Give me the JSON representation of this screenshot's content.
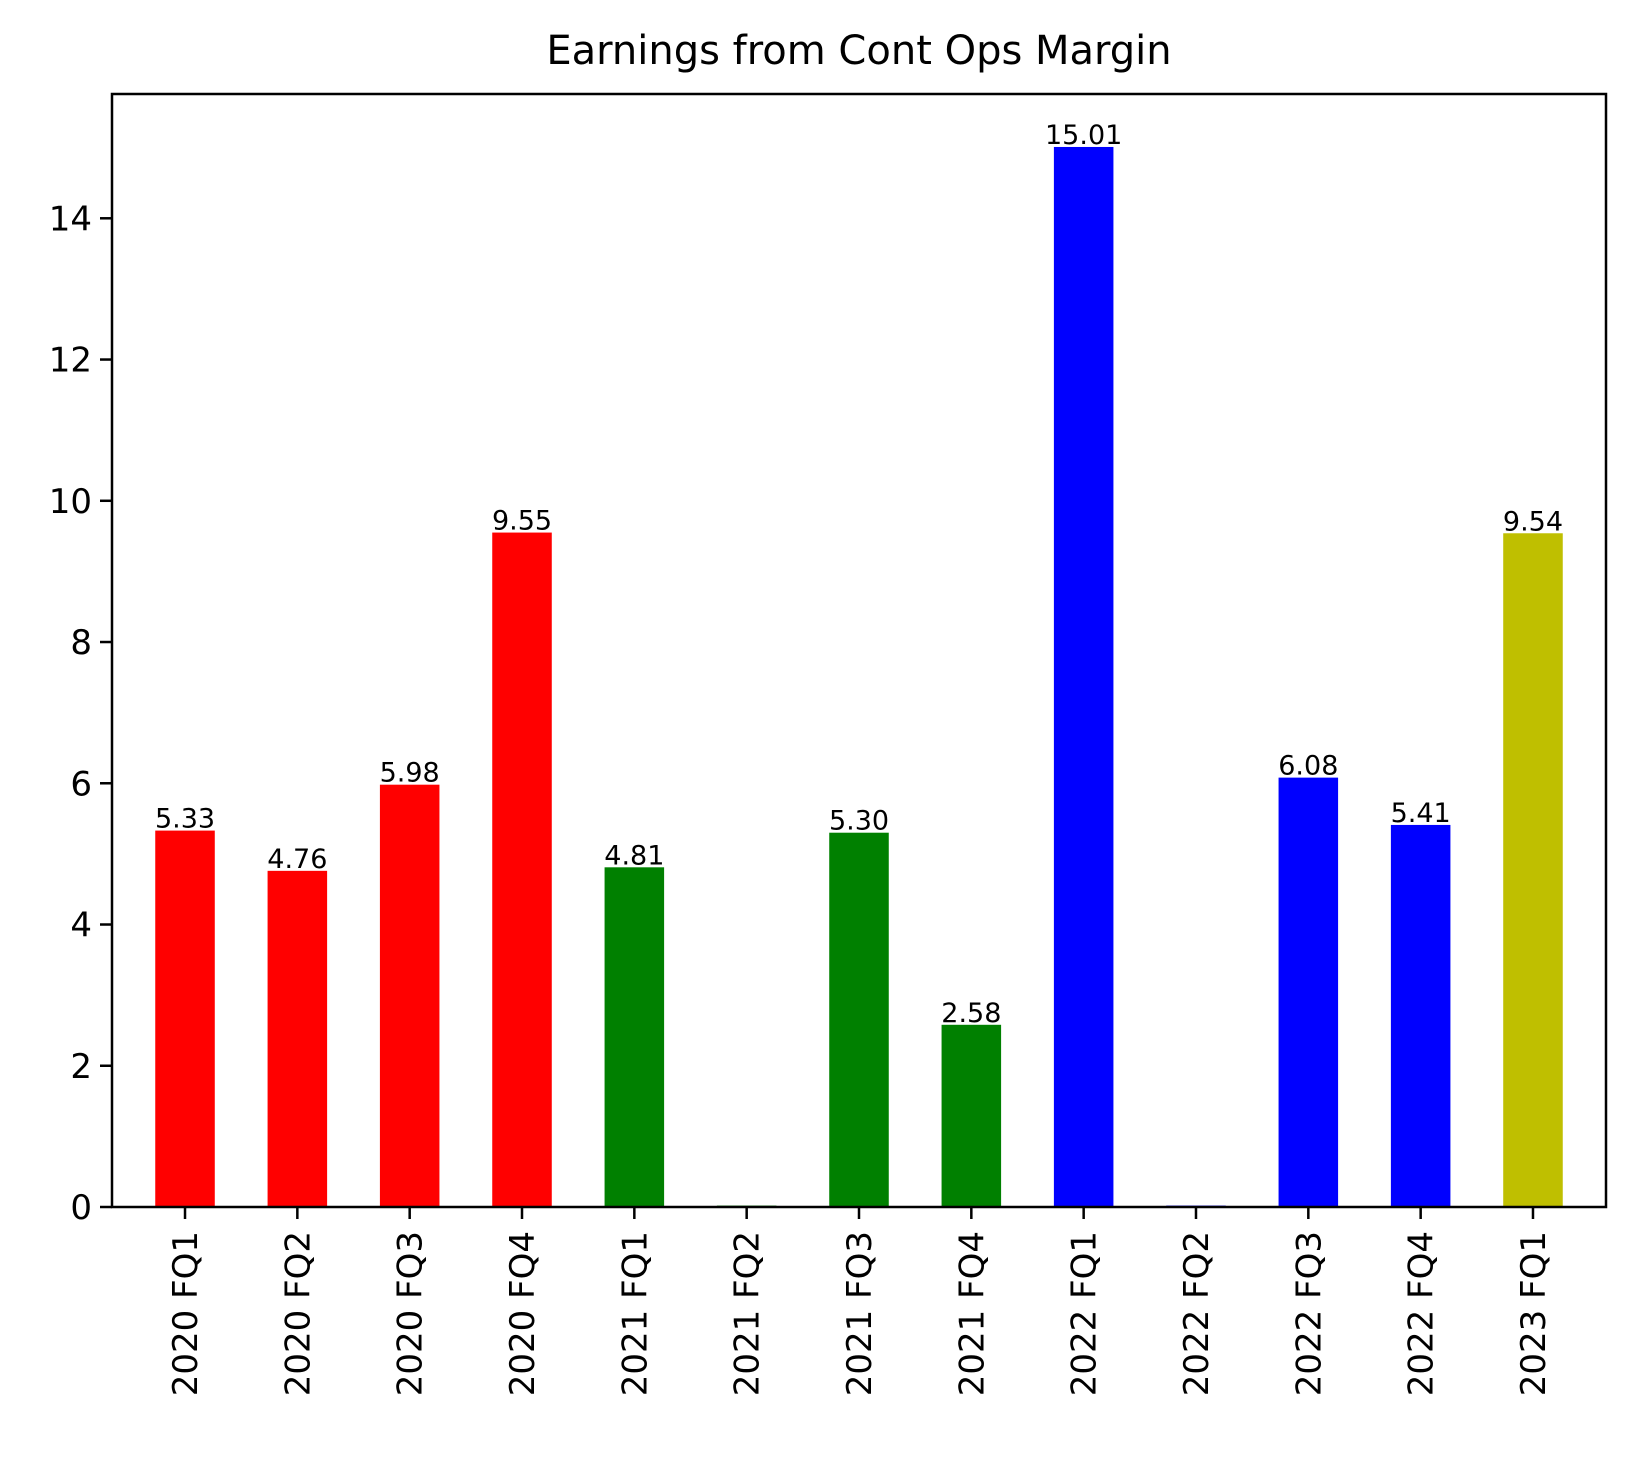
{
  "chart_data": {
    "type": "bar",
    "title": "Earnings from Cont Ops Margin",
    "xlabel": "",
    "ylabel": "",
    "ylim": [
      0,
      15.76
    ],
    "yticks": [
      0,
      2,
      4,
      6,
      8,
      10,
      12,
      14
    ],
    "grid": false,
    "legend": "none",
    "categories": [
      "2020 FQ1",
      "2020 FQ2",
      "2020 FQ3",
      "2020 FQ4",
      "2021 FQ1",
      "2021 FQ2",
      "2021 FQ3",
      "2021 FQ4",
      "2022 FQ1",
      "2022 FQ2",
      "2022 FQ3",
      "2022 FQ4",
      "2023 FQ1"
    ],
    "values": [
      5.33,
      4.76,
      5.98,
      9.55,
      4.81,
      0.02,
      5.3,
      2.58,
      15.01,
      0.02,
      6.08,
      5.41,
      9.54
    ],
    "value_labels": [
      "5.33",
      "4.76",
      "5.98",
      "9.55",
      "4.81",
      "",
      "5.30",
      "2.58",
      "15.01",
      "",
      "6.08",
      "5.41",
      "9.54"
    ],
    "colors": [
      "#ff0000",
      "#ff0000",
      "#ff0000",
      "#ff0000",
      "#008000",
      "#008000",
      "#008000",
      "#008000",
      "#0000ff",
      "#0000ff",
      "#0000ff",
      "#0000ff",
      "#bfbf00"
    ]
  }
}
